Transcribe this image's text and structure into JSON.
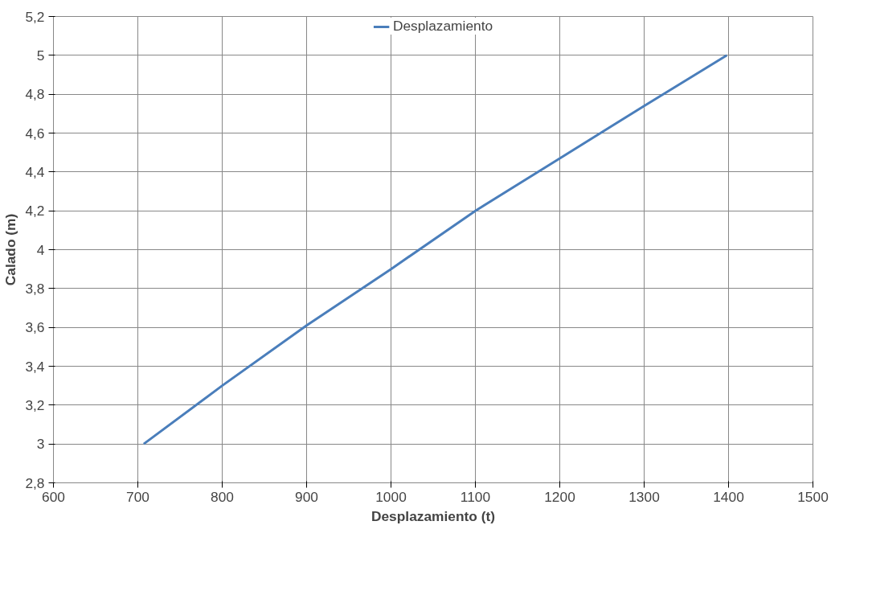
{
  "chart_data": {
    "type": "line",
    "xlabel": "Desplazamiento (t)",
    "ylabel": "Calado (m)",
    "x": [
      707,
      800,
      900,
      1000,
      1100,
      1200,
      1300,
      1398
    ],
    "series": [
      {
        "name": "Desplazamiento",
        "color": "#4a7ebb",
        "values": [
          3.0,
          3.3,
          3.61,
          3.9,
          4.2,
          4.47,
          4.74,
          5.0
        ]
      }
    ],
    "xlim": [
      600,
      1500
    ],
    "xticks": [
      600,
      700,
      800,
      900,
      1000,
      1100,
      1200,
      1300,
      1400,
      1500
    ],
    "ylim": [
      2.8,
      5.2
    ],
    "yticks": [
      {
        "value": 2.8,
        "label": "2,8"
      },
      {
        "value": 3,
        "label": "3"
      },
      {
        "value": 3.2,
        "label": "3,2"
      },
      {
        "value": 3.4,
        "label": "3,4"
      },
      {
        "value": 3.6,
        "label": "3,6"
      },
      {
        "value": 3.8,
        "label": "3,8"
      },
      {
        "value": 4,
        "label": "4"
      },
      {
        "value": 4.2,
        "label": "4,2"
      },
      {
        "value": 4.4,
        "label": "4,4"
      },
      {
        "value": 4.6,
        "label": "4,6"
      },
      {
        "value": 4.8,
        "label": "4,8"
      },
      {
        "value": 5,
        "label": "5"
      },
      {
        "value": 5.2,
        "label": "5,2"
      }
    ],
    "grid": true,
    "legend": "top",
    "marker": "none",
    "line_style": "solid"
  }
}
